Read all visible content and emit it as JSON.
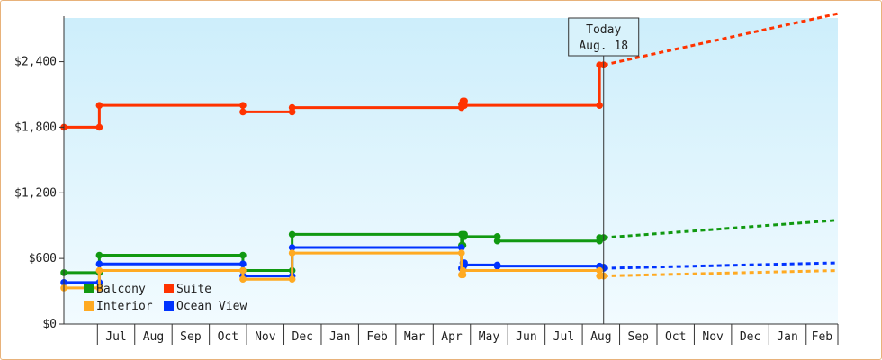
{
  "chart_data": {
    "type": "line",
    "step": true,
    "y_ticks": [
      "$0",
      "$600",
      "$1,200",
      "$1,800",
      "$2,400"
    ],
    "y_tick_values": [
      0,
      600,
      1200,
      1800,
      2400
    ],
    "ylim": [
      0,
      2800
    ],
    "x_tick_labels": [
      "Jul",
      "Aug",
      "Sep",
      "Oct",
      "Nov",
      "Dec",
      "Jan",
      "Feb",
      "Mar",
      "Apr",
      "May",
      "Jun",
      "Jul",
      "Aug",
      "Sep",
      "Oct",
      "Nov",
      "Dec",
      "Jan",
      "Feb"
    ],
    "x_month_starts": [
      1,
      2,
      3,
      4,
      5,
      6,
      7,
      8,
      9,
      10,
      11,
      12,
      13,
      14,
      15,
      16,
      17,
      18,
      19,
      20
    ],
    "xlim": [
      0.1,
      20.85
    ],
    "today": {
      "line1": "Today",
      "line2": "Aug. 18",
      "x": 14.57
    },
    "legend": {
      "placement": "bottom-left",
      "entries": [
        "Balcony",
        "Suite",
        "Interior",
        "Ocean View"
      ]
    },
    "series": [
      {
        "name": "Suite",
        "color": "#ff3300",
        "points": [
          [
            0.1,
            1800
          ],
          [
            1.0,
            1800
          ],
          [
            1.05,
            2000
          ],
          [
            4.85,
            2000
          ],
          [
            4.9,
            1940
          ],
          [
            5.0,
            1940
          ],
          [
            6.2,
            1940
          ],
          [
            6.22,
            1980
          ],
          [
            10.72,
            1980
          ],
          [
            10.76,
            2010
          ],
          [
            10.8,
            2040
          ],
          [
            10.84,
            2000
          ],
          [
            14.43,
            2000
          ],
          [
            14.46,
            2370
          ],
          [
            14.57,
            2370
          ]
        ],
        "forecast": [
          [
            14.57,
            2370
          ],
          [
            20.85,
            2840
          ]
        ]
      },
      {
        "name": "Balcony",
        "color": "#119911",
        "points": [
          [
            0.1,
            470
          ],
          [
            1.0,
            470
          ],
          [
            1.05,
            630
          ],
          [
            4.85,
            630
          ],
          [
            4.9,
            490
          ],
          [
            6.2,
            490
          ],
          [
            6.22,
            820
          ],
          [
            10.72,
            820
          ],
          [
            10.76,
            720
          ],
          [
            10.8,
            820
          ],
          [
            10.84,
            800
          ],
          [
            11.7,
            800
          ],
          [
            11.72,
            760
          ],
          [
            14.43,
            760
          ],
          [
            14.46,
            790
          ],
          [
            14.57,
            790
          ]
        ],
        "forecast": [
          [
            14.57,
            790
          ],
          [
            20.85,
            950
          ]
        ]
      },
      {
        "name": "Ocean View",
        "color": "#0033ff",
        "points": [
          [
            0.1,
            380
          ],
          [
            1.0,
            380
          ],
          [
            1.05,
            550
          ],
          [
            4.85,
            550
          ],
          [
            4.9,
            440
          ],
          [
            6.2,
            440
          ],
          [
            6.22,
            700
          ],
          [
            10.72,
            700
          ],
          [
            10.76,
            510
          ],
          [
            10.8,
            560
          ],
          [
            10.84,
            540
          ],
          [
            11.7,
            540
          ],
          [
            11.72,
            530
          ],
          [
            14.43,
            530
          ],
          [
            14.46,
            520
          ],
          [
            14.57,
            510
          ]
        ],
        "forecast": [
          [
            14.57,
            510
          ],
          [
            20.85,
            560
          ]
        ]
      },
      {
        "name": "Interior",
        "color": "#ffaa22",
        "points": [
          [
            0.1,
            330
          ],
          [
            1.0,
            330
          ],
          [
            1.05,
            490
          ],
          [
            4.85,
            490
          ],
          [
            4.9,
            410
          ],
          [
            6.2,
            410
          ],
          [
            6.22,
            650
          ],
          [
            10.72,
            650
          ],
          [
            10.76,
            450
          ],
          [
            10.8,
            490
          ],
          [
            10.84,
            490
          ],
          [
            14.43,
            490
          ],
          [
            14.46,
            440
          ],
          [
            14.57,
            440
          ]
        ],
        "forecast": [
          [
            14.57,
            440
          ],
          [
            20.85,
            490
          ]
        ]
      }
    ]
  }
}
